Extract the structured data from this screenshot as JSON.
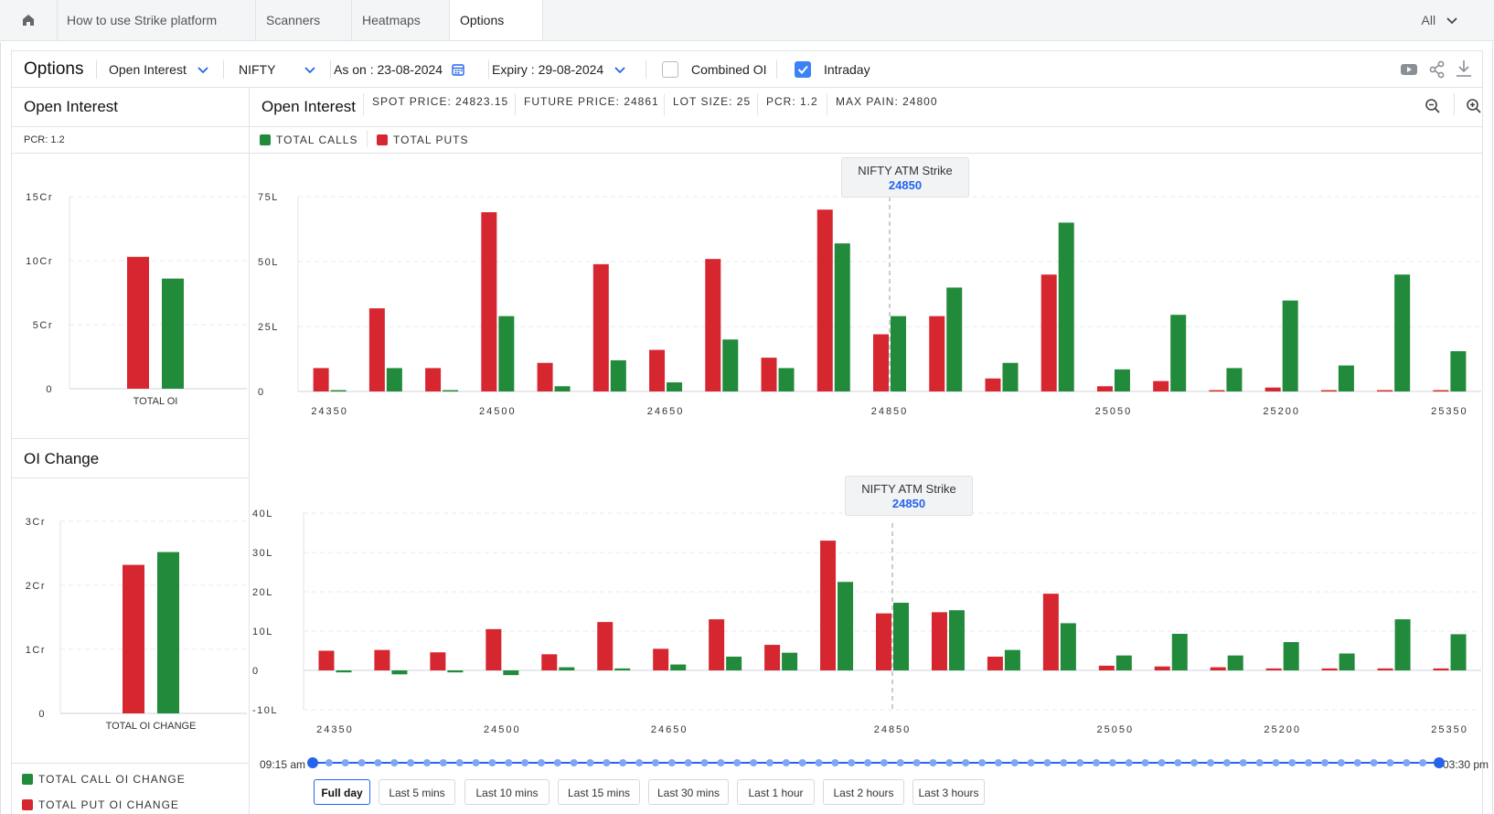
{
  "nav": {
    "tabs": [
      {
        "label": "How to use Strike platform"
      },
      {
        "label": "Scanners"
      },
      {
        "label": "Heatmaps"
      },
      {
        "label": "Options"
      }
    ],
    "filter_label": "All",
    "home_icon": "home-icon"
  },
  "toolbar": {
    "title": "Options",
    "metric_select": "Open Interest",
    "symbol_select": "NIFTY",
    "as_on_label": "As on :",
    "as_on_value": "23-08-2024",
    "expiry_label": "Expiry :",
    "expiry_value": "29-08-2024",
    "combined_oi_label": "Combined OI",
    "combined_oi_checked": false,
    "intraday_label": "Intraday",
    "intraday_checked": true,
    "icons": [
      "youtube-icon",
      "share-icon",
      "download-icon"
    ]
  },
  "left_panel": {
    "oi_title": "Open Interest",
    "pcr": "PCR: 1.2",
    "oi_change_title": "OI Change",
    "legend_call_change": "TOTAL CALL OI CHANGE",
    "legend_put_change": "TOTAL PUT OI CHANGE"
  },
  "main_panel": {
    "title": "Open Interest",
    "stats": [
      "SPOT PRICE: 24823.15",
      "FUTURE PRICE: 24861",
      "LOT SIZE: 25",
      "PCR: 1.2",
      "MAX PAIN: 24800"
    ],
    "legend_calls": "TOTAL CALLS",
    "legend_puts": "TOTAL PUTS",
    "atm_label": "NIFTY ATM Strike",
    "atm_value": "24850",
    "zoom_icons": [
      "zoom-out-icon",
      "zoom-in-icon"
    ]
  },
  "time_slider": {
    "start": "09:15 am",
    "end": "03:30 pm",
    "buttons": [
      "Full day",
      "Last 5 mins",
      "Last 10 mins",
      "Last 15 mins",
      "Last 30 mins",
      "Last 1 hour",
      "Last 2 hours",
      "Last 3 hours"
    ],
    "active": "Full day"
  },
  "colors": {
    "calls": "#218a3b",
    "puts": "#d62731",
    "accent": "#2563eb"
  },
  "chart_data": [
    {
      "id": "total-oi",
      "type": "bar",
      "categories": [
        "TOTAL OI"
      ],
      "series": [
        {
          "name": "TOTAL PUTS",
          "values": [
            10.3
          ]
        },
        {
          "name": "TOTAL CALLS",
          "values": [
            8.6
          ]
        }
      ],
      "yticks": [
        "0",
        "5Cr",
        "10Cr",
        "15Cr"
      ],
      "ylim": [
        0,
        15
      ],
      "unit": "Cr"
    },
    {
      "id": "total-oi-change",
      "type": "bar",
      "categories": [
        "TOTAL OI CHANGE"
      ],
      "series": [
        {
          "name": "TOTAL PUT OI CHANGE",
          "values": [
            2.32
          ]
        },
        {
          "name": "TOTAL CALL OI CHANGE",
          "values": [
            2.52
          ]
        }
      ],
      "yticks": [
        "0",
        "1Cr",
        "2Cr",
        "3Cr"
      ],
      "ylim": [
        0,
        3
      ],
      "unit": "Cr"
    },
    {
      "id": "strike-oi",
      "type": "bar",
      "categories": [
        "24350",
        "24400",
        "24450",
        "24500",
        "24550",
        "24600",
        "24650",
        "24700",
        "24750",
        "24800",
        "24850",
        "24900",
        "24950",
        "25000",
        "25050",
        "25100",
        "25150",
        "25200",
        "25250",
        "25300",
        "25350"
      ],
      "tick_labels": [
        "24350",
        "24500",
        "24650",
        "24850",
        "25050",
        "25200",
        "25350"
      ],
      "series": [
        {
          "name": "TOTAL PUTS",
          "values": [
            9,
            32,
            9,
            69,
            11,
            49,
            16,
            51,
            13,
            70,
            22,
            29,
            5,
            45,
            2,
            4,
            0.5,
            1.5,
            0.5,
            0.5,
            0.5
          ]
        },
        {
          "name": "TOTAL CALLS",
          "values": [
            0.5,
            9,
            0.5,
            29,
            2,
            12,
            3.5,
            20,
            9,
            57,
            29,
            40,
            11,
            65,
            8.5,
            29.5,
            9,
            35,
            10,
            45,
            15.5
          ]
        }
      ],
      "yticks": [
        "0",
        "25L",
        "50L",
        "75L"
      ],
      "ylim": [
        0,
        75
      ],
      "atm_strike": "24850",
      "unit": "L"
    },
    {
      "id": "strike-oi-change",
      "type": "bar",
      "categories": [
        "24350",
        "24400",
        "24450",
        "24500",
        "24550",
        "24600",
        "24650",
        "24700",
        "24750",
        "24800",
        "24850",
        "24900",
        "24950",
        "25000",
        "25050",
        "25100",
        "25150",
        "25200",
        "25250",
        "25300",
        "25350"
      ],
      "tick_labels": [
        "24350",
        "24500",
        "24650",
        "24850",
        "25050",
        "25200",
        "25350"
      ],
      "series": [
        {
          "name": "TOTAL PUT OI CHANGE",
          "values": [
            5,
            5.2,
            4.6,
            10.5,
            4.1,
            12.3,
            5.5,
            13,
            6.5,
            33,
            14.5,
            14.8,
            3.5,
            19.5,
            1.2,
            1,
            0.8,
            0.5,
            0.5,
            0.5,
            0.5
          ]
        },
        {
          "name": "TOTAL CALL OI CHANGE",
          "values": [
            -0.5,
            -1,
            -0.5,
            -1.2,
            0.8,
            0.5,
            1.5,
            3.5,
            4.5,
            22.5,
            17.2,
            15.3,
            5.2,
            12,
            3.8,
            9.3,
            3.8,
            7.2,
            4.3,
            13,
            9.2
          ]
        }
      ],
      "yticks": [
        "-10L",
        "0",
        "10L",
        "20L",
        "30L",
        "40L"
      ],
      "ylim": [
        -10,
        40
      ],
      "atm_strike": "24850",
      "unit": "L"
    }
  ]
}
